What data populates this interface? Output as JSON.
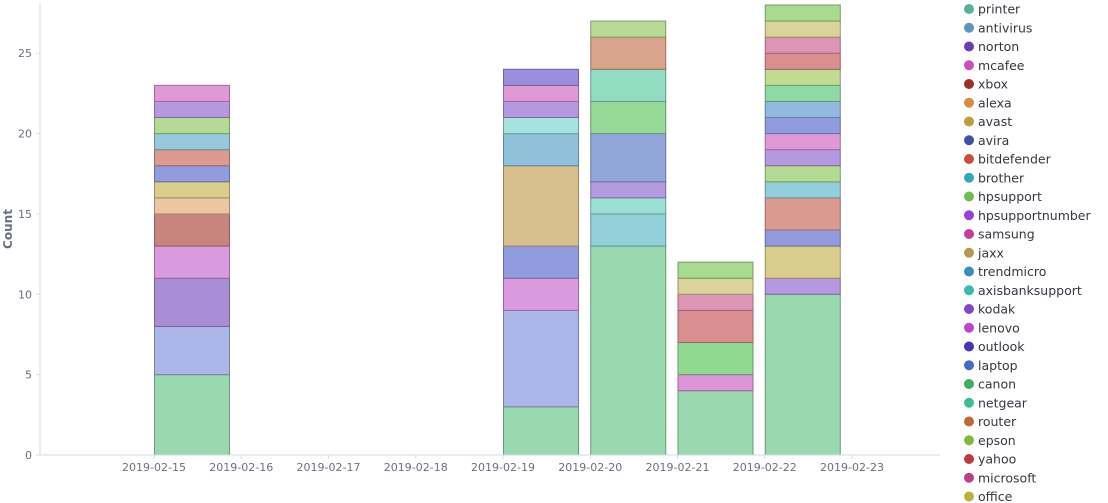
{
  "chart_data": {
    "type": "bar",
    "stacked": true,
    "ylabel": "Count",
    "xlabel": "",
    "ylim": [
      0,
      28
    ],
    "yticks": [
      0,
      5,
      10,
      15,
      20,
      25
    ],
    "xticks": [
      "2019-02-15",
      "2019-02-16",
      "2019-02-17",
      "2019-02-18",
      "2019-02-19",
      "2019-02-20",
      "2019-02-21",
      "2019-02-22",
      "2019-02-23"
    ],
    "grid": false,
    "legend_position": "right",
    "legend": [
      {
        "name": "printer",
        "color": "#54B399"
      },
      {
        "name": "antivirus",
        "color": "#6092C0"
      },
      {
        "name": "norton",
        "color": "#6A3FB3"
      },
      {
        "name": "mcafee",
        "color": "#CA4FB9"
      },
      {
        "name": "xbox",
        "color": "#A22B2B"
      },
      {
        "name": "alexa",
        "color": "#DA8B45"
      },
      {
        "name": "avast",
        "color": "#B9A139"
      },
      {
        "name": "avira",
        "color": "#3D51A8"
      },
      {
        "name": "bitdefender",
        "color": "#C94D3F"
      },
      {
        "name": "brother",
        "color": "#32A9B5"
      },
      {
        "name": "hpsupport",
        "color": "#73BE48"
      },
      {
        "name": "hpsupportnumber",
        "color": "#9C3FD5"
      },
      {
        "name": "samsung",
        "color": "#C83C9C"
      },
      {
        "name": "jaxx",
        "color": "#B49A4F"
      },
      {
        "name": "trendmicro",
        "color": "#3A8DBF"
      },
      {
        "name": "axisbanksupport",
        "color": "#35BCAE"
      },
      {
        "name": "kodak",
        "color": "#8547C9"
      },
      {
        "name": "lenovo",
        "color": "#BE44CE"
      },
      {
        "name": "outlook",
        "color": "#4A35B0"
      },
      {
        "name": "laptop",
        "color": "#4868C4"
      },
      {
        "name": "canon",
        "color": "#3FAE5D"
      },
      {
        "name": "netgear",
        "color": "#3ABF8D"
      },
      {
        "name": "router",
        "color": "#C0683A"
      },
      {
        "name": "epson",
        "color": "#86B83E"
      },
      {
        "name": "yahoo",
        "color": "#C0393E"
      },
      {
        "name": "microsoft",
        "color": "#BF3E8A"
      },
      {
        "name": "office",
        "color": "#B9B23C"
      }
    ],
    "bars": [
      {
        "date": "2019-02-15",
        "segments": [
          {
            "value": 5,
            "color": "#9ad9af"
          },
          {
            "value": 3,
            "color": "#aab7e8"
          },
          {
            "value": 3,
            "color": "#a98ed6"
          },
          {
            "value": 2,
            "color": "#da9ae0"
          },
          {
            "value": 2,
            "color": "#c8857f"
          },
          {
            "value": 1,
            "color": "#ecc6a0"
          },
          {
            "value": 1,
            "color": "#dbcd8e"
          },
          {
            "value": 1,
            "color": "#939bdf"
          },
          {
            "value": 1,
            "color": "#da9a90"
          },
          {
            "value": 1,
            "color": "#98c8de"
          },
          {
            "value": 1,
            "color": "#b4db94"
          },
          {
            "value": 1,
            "color": "#b598e0"
          },
          {
            "value": 1,
            "color": "#df9ad6"
          }
        ]
      },
      {
        "date": "2019-02-19",
        "segments": [
          {
            "value": 3,
            "color": "#9ad9af"
          },
          {
            "value": 6,
            "color": "#aab7e8"
          },
          {
            "value": 2,
            "color": "#da9ae0"
          },
          {
            "value": 2,
            "color": "#939bdf"
          },
          {
            "value": 5,
            "color": "#d9bf8d"
          },
          {
            "value": 2,
            "color": "#90c0da"
          },
          {
            "value": 1,
            "color": "#a6e3dc"
          },
          {
            "value": 1,
            "color": "#b598e0"
          },
          {
            "value": 1,
            "color": "#df9ad6"
          },
          {
            "value": 1,
            "color": "#9a8fdc"
          }
        ]
      },
      {
        "date": "2019-02-20",
        "segments": [
          {
            "value": 13,
            "color": "#9ad9af"
          },
          {
            "value": 2,
            "color": "#92d0da"
          },
          {
            "value": 1,
            "color": "#9ae0d5"
          },
          {
            "value": 1,
            "color": "#b49ae0"
          },
          {
            "value": 3,
            "color": "#93a6db"
          },
          {
            "value": 2,
            "color": "#96d996"
          },
          {
            "value": 2,
            "color": "#92dcc1"
          },
          {
            "value": 2,
            "color": "#d9a48c"
          },
          {
            "value": 1,
            "color": "#b9da95"
          }
        ]
      },
      {
        "date": "2019-02-21",
        "segments": [
          {
            "value": 4,
            "color": "#9ad9af"
          },
          {
            "value": 1,
            "color": "#de94d8"
          },
          {
            "value": 2,
            "color": "#8fd991"
          },
          {
            "value": 2,
            "color": "#d98f8f"
          },
          {
            "value": 1,
            "color": "#de94b4"
          },
          {
            "value": 1,
            "color": "#dbd49a"
          },
          {
            "value": 1,
            "color": "#a8db8f"
          }
        ]
      },
      {
        "date": "2019-02-22",
        "segments": [
          {
            "value": 10,
            "color": "#9ad9af"
          },
          {
            "value": 1,
            "color": "#b598e0"
          },
          {
            "value": 2,
            "color": "#dbcd8e"
          },
          {
            "value": 1,
            "color": "#939bdf"
          },
          {
            "value": 2,
            "color": "#da9a90"
          },
          {
            "value": 1,
            "color": "#92cfdb"
          },
          {
            "value": 1,
            "color": "#b4db94"
          },
          {
            "value": 1,
            "color": "#b598e0"
          },
          {
            "value": 1,
            "color": "#df9ad6"
          },
          {
            "value": 1,
            "color": "#939bdf"
          },
          {
            "value": 1,
            "color": "#93b9df"
          },
          {
            "value": 1,
            "color": "#8fd9a6"
          },
          {
            "value": 1,
            "color": "#bfdb94"
          },
          {
            "value": 1,
            "color": "#d98f8f"
          },
          {
            "value": 1,
            "color": "#de94b4"
          },
          {
            "value": 1,
            "color": "#dbd49a"
          },
          {
            "value": 1,
            "color": "#a8db8f"
          }
        ]
      }
    ]
  }
}
